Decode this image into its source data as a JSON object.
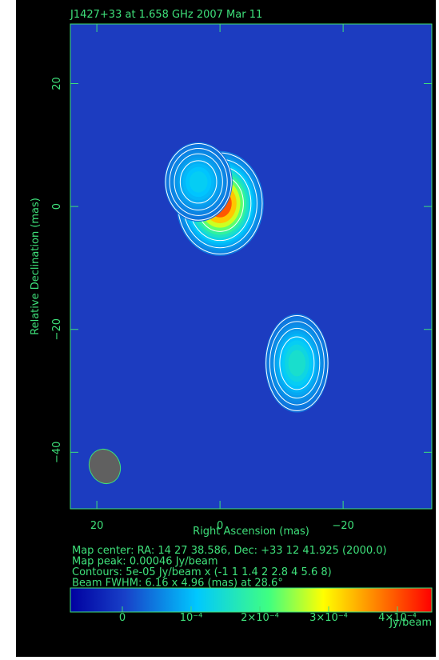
{
  "chart_data": {
    "type": "image",
    "title": "J1427+33 at 1.658 GHz 2007 Mar 11",
    "x_label": "Right Ascension  (mas)",
    "y_label": "Relative Declination  (mas)",
    "xlim": [
      24.3,
      -34.4
    ],
    "ylim": [
      -49.2,
      29.7
    ],
    "xticks": [
      20,
      0,
      {
        "value": -20,
        "label": "−20"
      }
    ],
    "yticks": [
      20,
      0,
      {
        "value": -20,
        "label": "−20"
      },
      {
        "value": -40,
        "label": "−40"
      }
    ],
    "components": [
      {
        "x": 0,
        "y": 0.5,
        "peak": 0.00046,
        "sigma_x": 3,
        "sigma_y": 3.6
      },
      {
        "x": 3.5,
        "y": 4,
        "peak": 0.00011,
        "sigma_x": 3,
        "sigma_y": 3.5
      },
      {
        "x": -12.5,
        "y": -25.5,
        "peak": 0.00015,
        "sigma_x": 2.6,
        "sigma_y": 4
      }
    ],
    "info": [
      "Map center:  RA: 14 27 38.586,  Dec: +33 12 41.925 (2000.0)",
      "Map peak: 0.00046 Jy/beam",
      "Contours: 5e-05 Jy/beam x (-1 1 1.4 2 2.8 4 5.6 8)",
      "Beam FWHM: 6.16 x 4.96 (mas) at 28.6°"
    ],
    "colorbar": {
      "clim": [
        -7.56e-05,
        0.00045
      ],
      "ticks": [
        0,
        {
          "value": 0.0001,
          "label": "10⁻⁴"
        },
        {
          "value": 0.0002,
          "label": "2×10⁻⁴"
        },
        {
          "value": 0.0003,
          "label": "3×10⁻⁴"
        },
        {
          "value": 0.0004,
          "label": "4×10⁻⁴"
        }
      ],
      "label": "Jy/beam"
    }
  }
}
